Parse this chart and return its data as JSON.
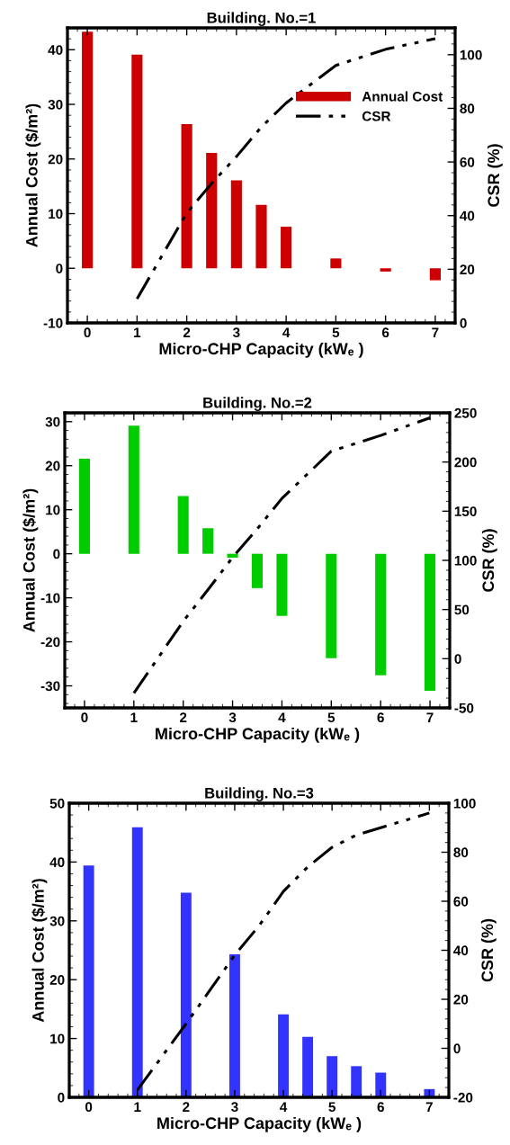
{
  "chart_data": [
    {
      "type": "bar",
      "title": "Building. No.=1",
      "xlabel": "Micro-CHP Capacity (kWₑ )",
      "ylabel": "Annual Cost ($/m²)",
      "y2label": "CSR (%)",
      "x": [
        0,
        1,
        2,
        2.5,
        3,
        3.5,
        4,
        5,
        6,
        7
      ],
      "series": [
        {
          "name": "Annual Cost",
          "color": "#cc0000",
          "values": [
            43.3,
            39.1,
            26.4,
            21.1,
            16.1,
            11.6,
            7.6,
            1.8,
            -0.6,
            -2.2
          ]
        },
        {
          "name": "CSR",
          "type": "line",
          "axis": "y2",
          "color": "#000000",
          "line_style": "dashed",
          "x": [
            1,
            2,
            2.5,
            3,
            3.5,
            4,
            5,
            6,
            7
          ],
          "values": [
            9,
            41,
            52,
            62,
            73,
            82,
            96,
            102,
            106
          ]
        }
      ],
      "xlim": [
        -0.4,
        7.4
      ],
      "xticks": [
        0,
        1,
        2,
        3,
        4,
        5,
        6,
        7
      ],
      "ylim": [
        -10,
        44
      ],
      "yticks": [
        -10,
        0,
        10,
        20,
        30,
        40
      ],
      "y2lim": [
        0,
        110
      ],
      "y2ticks": [
        0,
        20,
        40,
        60,
        80,
        100
      ],
      "legend": "right",
      "grid": false
    },
    {
      "type": "bar",
      "title": "Building. No.=2",
      "xlabel": "Micro-CHP Capacity (kWₑ )",
      "ylabel": "Annual Cost ($/m²)",
      "y2label": "CSR (%)",
      "x": [
        0,
        1,
        2,
        2.5,
        3,
        3.5,
        4,
        5,
        6,
        7
      ],
      "series": [
        {
          "color": "#00cc00",
          "values": [
            21.6,
            29.1,
            13.1,
            5.8,
            -0.9,
            -7.8,
            -14.1,
            -23.7,
            -27.6,
            -31.1
          ]
        },
        {
          "type": "line",
          "axis": "y2",
          "color": "#000000",
          "line_style": "dashed",
          "x": [
            1,
            2,
            2.5,
            3,
            3.5,
            4,
            5,
            6,
            7
          ],
          "values": [
            -35,
            38,
            70,
            103,
            132,
            163,
            211,
            227,
            245
          ]
        }
      ],
      "xlim": [
        -0.4,
        7.4
      ],
      "xticks": [
        0,
        1,
        2,
        3,
        4,
        5,
        6,
        7
      ],
      "ylim": [
        -35,
        32
      ],
      "yticks": [
        -30,
        -20,
        -10,
        0,
        10,
        20,
        30
      ],
      "y2lim": [
        -50,
        250
      ],
      "y2ticks": [
        -50,
        0,
        50,
        100,
        150,
        200,
        250
      ],
      "grid": false
    },
    {
      "type": "bar",
      "title": "Building. No.=3",
      "xlabel": "Micro-CHP Capacity (kWₑ )",
      "ylabel": "Annual Cost ($/m²)",
      "y2label": "CSR (%)",
      "x": [
        0,
        1,
        2,
        3,
        4,
        4.5,
        5,
        5.5,
        6,
        7
      ],
      "series": [
        {
          "color": "#3333ff",
          "values": [
            39.4,
            45.9,
            34.8,
            24.3,
            14.1,
            10.3,
            7.0,
            5.3,
            4.2,
            1.4
          ]
        },
        {
          "type": "line",
          "axis": "y2",
          "color": "#000000",
          "line_style": "dashed",
          "x": [
            1,
            2,
            2.5,
            3,
            3.5,
            4,
            4.5,
            5,
            5.5,
            6,
            7
          ],
          "values": [
            -17,
            10,
            24,
            38,
            50,
            64,
            74,
            82,
            87,
            90,
            96
          ]
        }
      ],
      "xlim": [
        -0.4,
        7.4
      ],
      "xticks": [
        0,
        1,
        2,
        3,
        4,
        5,
        6,
        7
      ],
      "ylim": [
        0,
        50
      ],
      "yticks": [
        0,
        10,
        20,
        30,
        40,
        50
      ],
      "y2lim": [
        -20,
        100
      ],
      "y2ticks": [
        -20,
        0,
        20,
        40,
        60,
        80,
        100
      ],
      "grid": false
    }
  ]
}
